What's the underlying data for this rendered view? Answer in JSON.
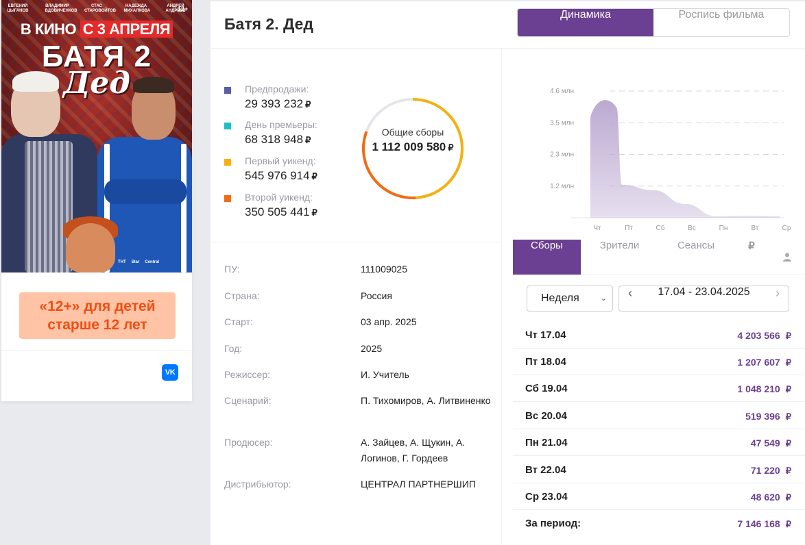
{
  "poster": {
    "cast": [
      "Евгений Цыганов",
      "Владимир Вдовиченков",
      "Стас Старовойтов",
      "Надежда Михалкова",
      "Андрей Андреев"
    ],
    "age": "12+",
    "release_pre": "В КИНО ",
    "release_hl": "С 3 АПРЕЛЯ",
    "title": "БАТЯ 2",
    "subtitle": "Дед",
    "logos": [
      "ТНТ",
      "Star",
      "Central"
    ]
  },
  "age_notice": "«12+» для детей старше 12 лет",
  "social": {
    "vk_icon": "VK"
  },
  "movie_title": "Батя 2. Дед",
  "tabs": [
    {
      "label": "Динамика",
      "active": true
    },
    {
      "label": "Роспись фильма",
      "active": false
    }
  ],
  "currency": "₽",
  "legend": [
    {
      "label": "Предпродажи:",
      "value": "29 393 232",
      "color": "#5b5ea6"
    },
    {
      "label": "День премьеры:",
      "value": "68 318 948",
      "color": "#1fbfc9"
    },
    {
      "label": "Первый уикенд:",
      "value": "545 976 914",
      "color": "#f6b010"
    },
    {
      "label": "Второй уикенд:",
      "value": "350 505 441",
      "color": "#f36b12"
    }
  ],
  "total": {
    "label": "Общие сборы",
    "value": "1 112 009 580"
  },
  "info": [
    {
      "key": "ПУ:",
      "value": "111009025"
    },
    {
      "key": "Страна:",
      "value": "Россия"
    },
    {
      "key": "Старт:",
      "value": "03 апр. 2025"
    },
    {
      "key": "Год:",
      "value": "2025"
    },
    {
      "key": "Режиссер:",
      "value": "И. Учитель"
    },
    {
      "key": "Сценарий:",
      "value": "П. Тихомиров, А. Литвиненко"
    },
    {
      "key": "Продюсер:",
      "value": "А. Зайцев, А. Щукин, А. Логинов, Г. Гордеев"
    },
    {
      "key": "Дистрибьютор:",
      "value": "ЦЕНТРАЛ ПАРТНЕРШИП"
    }
  ],
  "chart_data": {
    "type": "area",
    "x": [
      "Чт",
      "Пт",
      "Сб",
      "Вс",
      "Пн",
      "Вт",
      "Ср"
    ],
    "values": [
      4.2,
      1.2,
      1.0,
      0.5,
      0.05,
      0.07,
      0.05
    ],
    "y_ticks": [
      "1.2 млн",
      "2.3 млн",
      "3.5 млн",
      "4.6 млн"
    ],
    "y_tick_values": [
      1.15,
      2.3,
      3.45,
      4.6
    ],
    "ylim": [
      0,
      4.6
    ],
    "grid": true,
    "color": "#b8a5cf"
  },
  "right_tabs": [
    {
      "label": "Сборы",
      "active": true
    },
    {
      "label": "Зрители",
      "active": false
    },
    {
      "label": "Сеансы",
      "active": false
    },
    {
      "label": "₽",
      "active": false,
      "icon": "ruble-icon"
    },
    {
      "label": "",
      "active": false,
      "icon": "person-icon"
    }
  ],
  "period_select": {
    "value": "Неделя"
  },
  "date_range": {
    "text": "17.04 - 23.04.2025",
    "prev": "‹",
    "next": "›"
  },
  "days": [
    {
      "label": "Чт 17.04",
      "value": "4 203 566"
    },
    {
      "label": "Пт 18.04",
      "value": "1 207 607"
    },
    {
      "label": "Сб 19.04",
      "value": "1 048 210"
    },
    {
      "label": "Вс 20.04",
      "value": "519 396"
    },
    {
      "label": "Пн 21.04",
      "value": "47 549"
    },
    {
      "label": "Вт 22.04",
      "value": "71 220"
    },
    {
      "label": "Ср 23.04",
      "value": "48 620"
    }
  ],
  "period_total": {
    "label": "За период:",
    "value": "7 146 168"
  }
}
